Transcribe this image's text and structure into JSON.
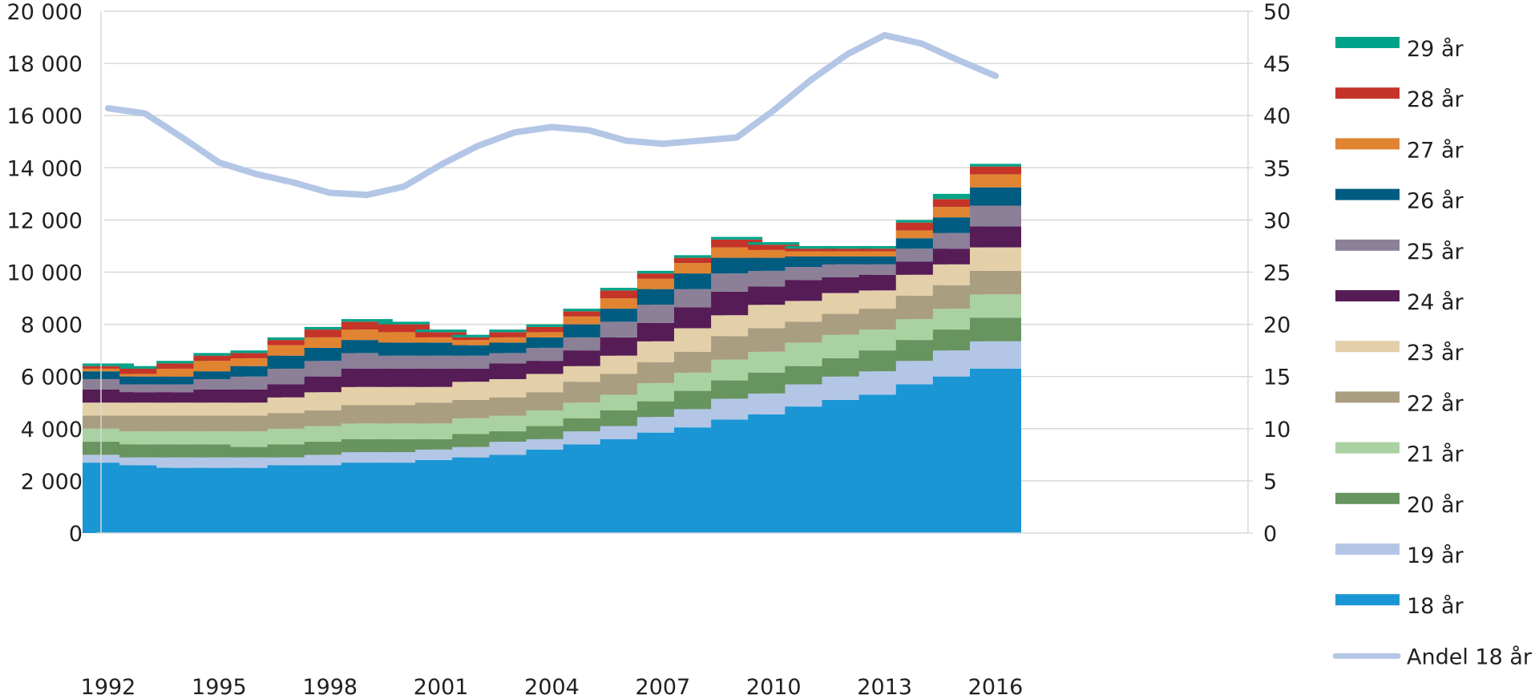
{
  "chart_data": {
    "type": "bar",
    "stacked": true,
    "title": "",
    "xlabel": "",
    "ylabel": "",
    "y2label": "",
    "ylim": [
      0,
      20000
    ],
    "y2lim": [
      0,
      50
    ],
    "yticks": [
      0,
      2000,
      4000,
      6000,
      8000,
      10000,
      12000,
      14000,
      16000,
      18000,
      20000
    ],
    "ytick_labels": [
      "0",
      "2 000",
      "4 000",
      "6 000",
      "8 000",
      "10 000",
      "12 000",
      "14 000",
      "16 000",
      "18 000",
      "20 000"
    ],
    "y2ticks": [
      0,
      5,
      10,
      15,
      20,
      25,
      30,
      35,
      40,
      45,
      50
    ],
    "y2tick_labels": [
      "0",
      "5",
      "10",
      "15",
      "20",
      "25",
      "30",
      "35",
      "40",
      "45",
      "50"
    ],
    "grid": true,
    "legend_position": "right",
    "categories": [
      "1992",
      "1993",
      "1994",
      "1995",
      "1996",
      "1997",
      "1998",
      "1999",
      "2000",
      "2001",
      "2002",
      "2003",
      "2004",
      "2005",
      "2006",
      "2007",
      "2008",
      "2009",
      "2010",
      "2011",
      "2012",
      "2013",
      "2014",
      "2015",
      "2016"
    ],
    "xtick_labels": [
      "1992",
      "1995",
      "1998",
      "2001",
      "2004",
      "2007",
      "2010",
      "2013",
      "2016"
    ],
    "series": [
      {
        "name": "18 år",
        "color": "#1a96d4",
        "axis": "left",
        "values": [
          2700,
          2600,
          2500,
          2500,
          2500,
          2600,
          2600,
          2700,
          2700,
          2800,
          2900,
          3000,
          3200,
          3400,
          3600,
          3850,
          4050,
          4350,
          4550,
          4850,
          5100,
          5300,
          5700,
          6000,
          6300
        ]
      },
      {
        "name": "19 år",
        "color": "#b3c6e6",
        "axis": "left",
        "values": [
          300,
          300,
          400,
          400,
          400,
          300,
          400,
          400,
          400,
          400,
          400,
          500,
          400,
          500,
          500,
          600,
          700,
          800,
          800,
          850,
          900,
          900,
          900,
          1000,
          1050
        ]
      },
      {
        "name": "20 år",
        "color": "#67945f",
        "axis": "left",
        "values": [
          500,
          500,
          500,
          500,
          400,
          500,
          500,
          500,
          500,
          400,
          500,
          400,
          500,
          500,
          600,
          600,
          700,
          700,
          800,
          700,
          700,
          800,
          800,
          800,
          900
        ]
      },
      {
        "name": "21 år",
        "color": "#aad1a2",
        "axis": "left",
        "values": [
          500,
          500,
          500,
          500,
          600,
          600,
          600,
          600,
          600,
          600,
          600,
          600,
          600,
          600,
          600,
          700,
          700,
          800,
          800,
          900,
          900,
          800,
          800,
          800,
          900
        ]
      },
      {
        "name": "22 år",
        "color": "#a99e81",
        "axis": "left",
        "values": [
          500,
          600,
          600,
          600,
          600,
          600,
          600,
          700,
          700,
          800,
          700,
          700,
          700,
          800,
          800,
          800,
          800,
          900,
          900,
          800,
          800,
          800,
          900,
          900,
          900
        ]
      },
      {
        "name": "23 år",
        "color": "#e3cfa8",
        "axis": "left",
        "values": [
          500,
          500,
          500,
          500,
          500,
          600,
          700,
          700,
          700,
          600,
          700,
          700,
          700,
          600,
          700,
          800,
          900,
          800,
          900,
          800,
          800,
          700,
          800,
          800,
          900
        ]
      },
      {
        "name": "24 år",
        "color": "#561c56",
        "axis": "left",
        "values": [
          500,
          400,
          400,
          500,
          500,
          500,
          600,
          700,
          700,
          700,
          500,
          600,
          500,
          600,
          700,
          700,
          800,
          900,
          700,
          800,
          600,
          600,
          500,
          600,
          800
        ]
      },
      {
        "name": "25 år",
        "color": "#8b8098",
        "axis": "left",
        "values": [
          400,
          300,
          300,
          400,
          500,
          600,
          600,
          600,
          500,
          500,
          500,
          400,
          500,
          500,
          600,
          700,
          700,
          700,
          600,
          500,
          500,
          400,
          500,
          600,
          800
        ]
      },
      {
        "name": "26 år",
        "color": "#005b80",
        "axis": "left",
        "values": [
          300,
          300,
          300,
          300,
          400,
          500,
          500,
          500,
          500,
          500,
          400,
          400,
          400,
          500,
          500,
          600,
          600,
          600,
          500,
          400,
          300,
          300,
          400,
          600,
          700
        ]
      },
      {
        "name": "27 år",
        "color": "#e08432",
        "axis": "left",
        "values": [
          100,
          100,
          300,
          400,
          300,
          400,
          400,
          400,
          400,
          200,
          200,
          200,
          200,
          300,
          400,
          400,
          400,
          400,
          300,
          200,
          200,
          200,
          300,
          400,
          500
        ]
      },
      {
        "name": "28 år",
        "color": "#c43428",
        "axis": "left",
        "values": [
          100,
          200,
          200,
          200,
          200,
          200,
          300,
          300,
          300,
          200,
          100,
          200,
          200,
          200,
          300,
          200,
          200,
          300,
          200,
          100,
          100,
          100,
          300,
          300,
          300
        ]
      },
      {
        "name": "29 år",
        "color": "#00a389",
        "axis": "left",
        "values": [
          100,
          100,
          100,
          100,
          100,
          100,
          100,
          100,
          100,
          100,
          100,
          100,
          100,
          100,
          100,
          100,
          100,
          100,
          100,
          100,
          100,
          100,
          100,
          200,
          100
        ]
      },
      {
        "name": "Andel 18 år",
        "type": "line",
        "color": "#b3c6e6",
        "axis": "right",
        "values": [
          40.7,
          40.2,
          37.9,
          35.5,
          34.4,
          33.6,
          32.6,
          32.4,
          33.2,
          35.3,
          37.1,
          38.4,
          38.9,
          38.6,
          37.6,
          37.3,
          37.6,
          37.9,
          40.5,
          43.4,
          45.9,
          47.7,
          46.9,
          45.3,
          43.8
        ]
      }
    ]
  }
}
